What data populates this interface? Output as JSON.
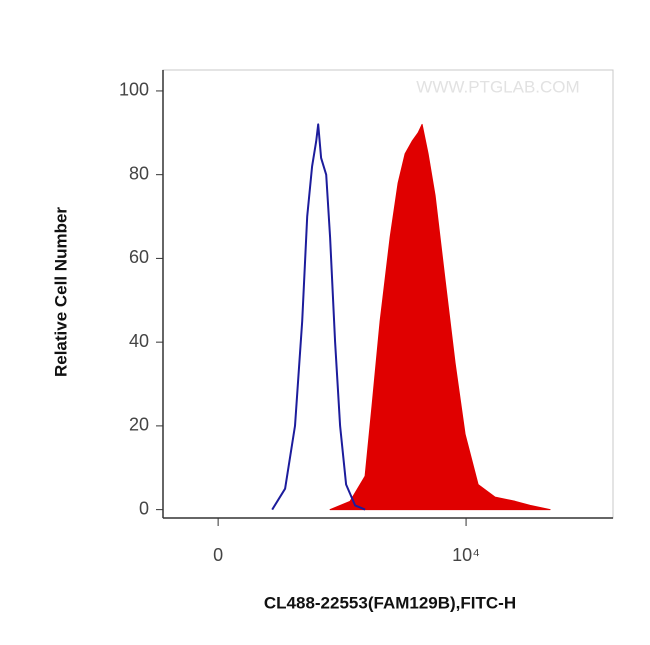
{
  "chart_data": {
    "type": "histogram-overlay",
    "xlabel": "CL488-22553(FAM129B),FITC-H",
    "ylabel": "Relative Cell Number",
    "annotation": "WWW.PTGLAB.COM",
    "xscale": "arcsinh",
    "xlim": [
      -147,
      231000
    ],
    "xticks": [
      0,
      {
        "value": 10000,
        "label": "10⁴"
      }
    ],
    "ylim": [
      -2,
      105
    ],
    "yticks": [
      0,
      20,
      40,
      60,
      80,
      100
    ],
    "series": [
      {
        "color": "#1c1c9c",
        "fill": false,
        "x": [
          143,
          197,
          249,
          293,
          328,
          366,
          400,
          418,
          446,
          498,
          543,
          605,
          674,
          767,
          931,
          1154
        ],
        "values": [
          0,
          5,
          20,
          45,
          70,
          82,
          88,
          92,
          84,
          80,
          65,
          40,
          20,
          6,
          1,
          0
        ]
      },
      {
        "color": "#e00000",
        "fill": true,
        "x": [
          543,
          836,
          1154,
          1342,
          1592,
          1971,
          2339,
          2717,
          3154,
          3590,
          3910,
          4440,
          5160,
          6380,
          7910,
          9800,
          12940,
          18600,
          28500,
          39300,
          60200
        ],
        "values": [
          0,
          2,
          8,
          25,
          45,
          65,
          78,
          85,
          88,
          90,
          92,
          85,
          75,
          55,
          35,
          18,
          6,
          3,
          2,
          1,
          0
        ]
      }
    ]
  }
}
